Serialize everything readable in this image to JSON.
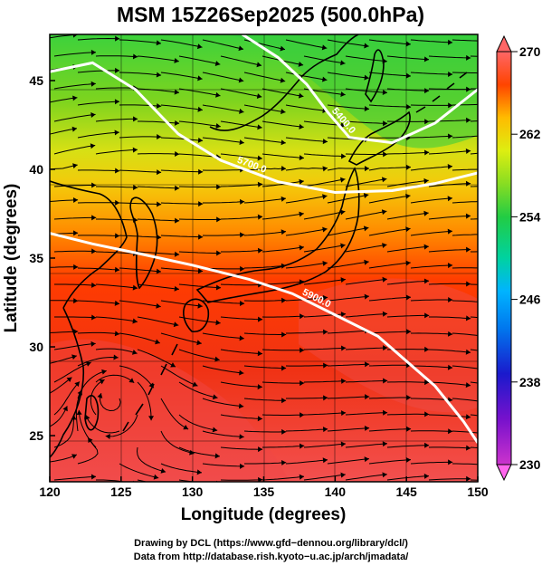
{
  "title": "MSM 15Z26Sep2025 (500.0hPa)",
  "x_axis": {
    "label": "Longitude (degrees)",
    "ticks": [
      "120",
      "125",
      "130",
      "135",
      "140",
      "145",
      "150"
    ],
    "range": [
      120,
      150
    ]
  },
  "y_axis": {
    "label": "Latitude  (degrees)",
    "ticks": [
      "25",
      "30",
      "35",
      "40",
      "45"
    ],
    "range": [
      22.4,
      47.6
    ]
  },
  "colorbar": {
    "ticks": [
      "270",
      "262",
      "254",
      "246",
      "238",
      "230"
    ],
    "range": [
      230,
      270
    ],
    "colors": [
      "#cc33cc",
      "#1a1acc",
      "#00aaff",
      "#00cc88",
      "#33cc33",
      "#cce619",
      "#ffcc00",
      "#ff8800",
      "#ff3300",
      "#ff6666"
    ]
  },
  "contours": [
    {
      "label": "5400.0",
      "points": [
        [
          133.5,
          47.6
        ],
        [
          136,
          46.3
        ],
        [
          138,
          44.8
        ],
        [
          139.5,
          43.2
        ],
        [
          141,
          41.8
        ],
        [
          144,
          41.5
        ],
        [
          147,
          42.6
        ],
        [
          150,
          44.5
        ]
      ]
    },
    {
      "label": "5700.0",
      "points": [
        [
          120,
          45.5
        ],
        [
          123,
          46
        ],
        [
          126,
          44.5
        ],
        [
          129,
          42
        ],
        [
          132,
          40.5
        ],
        [
          136,
          39.3
        ],
        [
          140,
          38.7
        ],
        [
          144,
          38.8
        ],
        [
          147,
          39.2
        ],
        [
          150,
          39.8
        ]
      ]
    },
    {
      "label": "5900.0",
      "points": [
        [
          120,
          36.4
        ],
        [
          123,
          35.8
        ],
        [
          126,
          35.3
        ],
        [
          130,
          34.6
        ],
        [
          134,
          33.8
        ],
        [
          137,
          33
        ],
        [
          140,
          31.8
        ],
        [
          143,
          30.6
        ],
        [
          145,
          29.2
        ],
        [
          147,
          27.8
        ],
        [
          149,
          25.8
        ],
        [
          150,
          24.6
        ]
      ]
    }
  ],
  "attribution": {
    "line1": "Drawing by DCL (https://www.gfd−dennou.org/library/dcl/)",
    "line2": "Data from http://database.rish.kyoto−u.ac.jp/arch/jmadata/"
  }
}
